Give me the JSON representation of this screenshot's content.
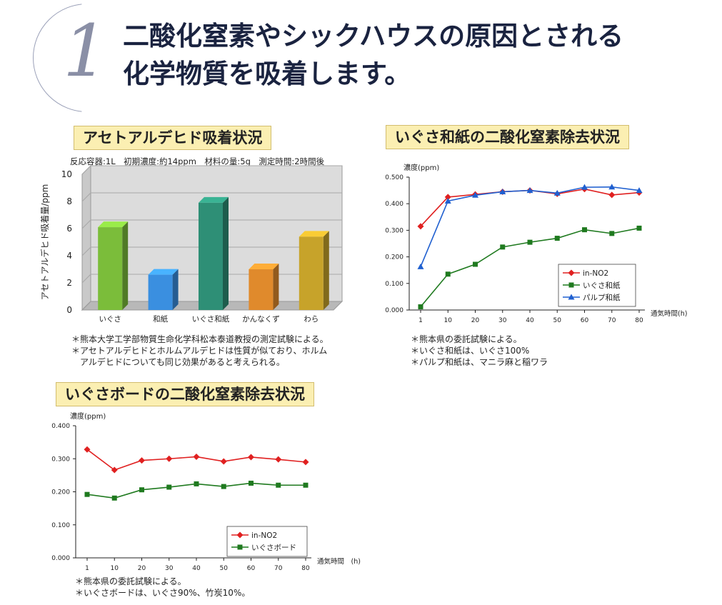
{
  "headline": {
    "number": "1",
    "line1": "二酸化窒素やシックハウスの原因とされる",
    "line2": "化学物質を吸着します。"
  },
  "acetaldehyde": {
    "title": "アセトアルデヒド吸着状況",
    "meta": "反応容器:1L　初期濃度:約14ppm　材料の量:5g　測定時間:2時間後",
    "notes": [
      "＊熊本大学工学部物質生命化学科松本泰道教授の測定試験による。",
      "＊アセトアルデヒドとホルムアルデヒドは性質が似ており、ホルム",
      "　アルデヒドについても同じ効果があると考えられる。"
    ]
  },
  "washi": {
    "title": "いぐさ和紙の二酸化窒素除去状況",
    "notes": [
      "＊熊本県の委託試験による。",
      "＊いぐさ和紙は、いぐさ100%",
      "＊パルプ和紙は、マニラ麻と稲ワラ"
    ]
  },
  "board": {
    "title": "いぐさボードの二酸化窒素除去状況",
    "notes": [
      "＊熊本県の委託試験による。",
      "＊いぐさボードは、いぐさ90%、竹炭10%。"
    ]
  },
  "chart_data": [
    {
      "type": "bar",
      "ylabel": "アセトアルデヒド吸着量/ppm",
      "ylim": [
        0,
        10
      ],
      "yticks": [
        0,
        2,
        4,
        6,
        8,
        10
      ],
      "categories": [
        "いぐさ",
        "和紙",
        "いぐさ和紙",
        "かんなくず",
        "わら"
      ],
      "values": [
        6.1,
        2.6,
        7.9,
        3.0,
        5.4
      ],
      "colors": [
        "#7bbd3a",
        "#3a8fe0",
        "#2e8f76",
        "#e08a2c",
        "#c7a32a"
      ],
      "grid": true
    },
    {
      "type": "line",
      "ylabel": "濃度(ppm)",
      "xlabel": "通気時間(h)",
      "x": [
        "1",
        "10",
        "20",
        "30",
        "40",
        "50",
        "60",
        "70",
        "80"
      ],
      "ylim": [
        0,
        0.5
      ],
      "yticks": [
        "0.000",
        "0.100",
        "0.200",
        "0.300",
        "0.400",
        "0.500"
      ],
      "legend_position": "bottom-right",
      "series": [
        {
          "name": "in-NO2",
          "color": "#e02020",
          "marker": "diamond",
          "values": [
            0.315,
            0.425,
            0.435,
            0.445,
            0.45,
            0.437,
            0.455,
            0.433,
            0.442
          ]
        },
        {
          "name": "いぐさ和紙",
          "color": "#1f7a1f",
          "marker": "square",
          "values": [
            0.012,
            0.135,
            0.172,
            0.237,
            0.255,
            0.27,
            0.302,
            0.288,
            0.308
          ]
        },
        {
          "name": "パルプ和紙",
          "color": "#2060d0",
          "marker": "triangle",
          "values": [
            0.163,
            0.41,
            0.432,
            0.445,
            0.45,
            0.44,
            0.462,
            0.463,
            0.45
          ]
        }
      ]
    },
    {
      "type": "line",
      "ylabel": "濃度(ppm)",
      "xlabel": "通気時間　(h)",
      "x": [
        "1",
        "10",
        "20",
        "30",
        "40",
        "50",
        "60",
        "70",
        "80"
      ],
      "ylim": [
        0,
        0.4
      ],
      "yticks": [
        "0.000",
        "0.100",
        "0.200",
        "0.300",
        "0.400"
      ],
      "legend_position": "bottom-right",
      "series": [
        {
          "name": "in-NO2",
          "color": "#e02020",
          "marker": "diamond",
          "values": [
            0.328,
            0.266,
            0.295,
            0.3,
            0.306,
            0.292,
            0.305,
            0.298,
            0.29
          ]
        },
        {
          "name": "いぐさボード",
          "color": "#1f7a1f",
          "marker": "square",
          "values": [
            0.192,
            0.181,
            0.206,
            0.214,
            0.224,
            0.216,
            0.226,
            0.22,
            0.22
          ]
        }
      ]
    }
  ]
}
